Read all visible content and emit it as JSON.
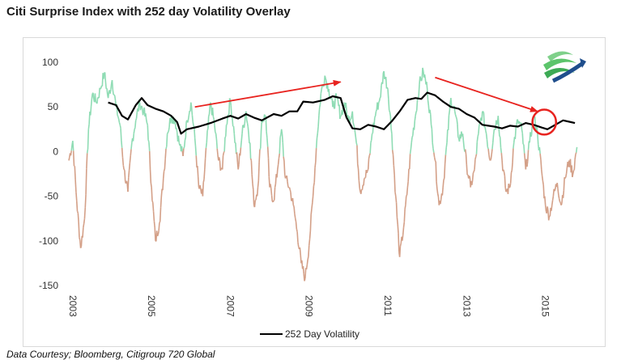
{
  "title": "Citi Surprise Index with 252 day Volatility Overlay",
  "source": "Data Courtesy; Bloomberg, Citigroup 720 Global",
  "colors": {
    "positive": "#8fdcb4",
    "negative": "#d4a088",
    "volatility": "#000000",
    "annotation": "#e8231f",
    "logo_green": "#5cc46b",
    "logo_blue": "#1f4e8c"
  },
  "chart_data": {
    "type": "line",
    "ylim": [
      -150,
      100
    ],
    "yticks": [
      100,
      50,
      0,
      -50,
      -100,
      -150
    ],
    "xlim": [
      2003,
      2015.95
    ],
    "xticks": [
      "2003",
      "2005",
      "2007",
      "2009",
      "2011",
      "2013",
      "2015"
    ],
    "legend": {
      "label": "252 Day Volatility",
      "position": "bottom"
    },
    "series": [
      {
        "name": "Citi Surprise Index",
        "style": "filled-line; green above 0, brown below 0",
        "points": [
          [
            2003.0,
            -10
          ],
          [
            2003.1,
            12
          ],
          [
            2003.2,
            -55
          ],
          [
            2003.3,
            -108
          ],
          [
            2003.4,
            -75
          ],
          [
            2003.5,
            25
          ],
          [
            2003.6,
            65
          ],
          [
            2003.7,
            55
          ],
          [
            2003.8,
            70
          ],
          [
            2003.9,
            88
          ],
          [
            2004.0,
            60
          ],
          [
            2004.1,
            80
          ],
          [
            2004.2,
            50
          ],
          [
            2004.3,
            30
          ],
          [
            2004.4,
            -20
          ],
          [
            2004.5,
            -45
          ],
          [
            2004.6,
            10
          ],
          [
            2004.7,
            35
          ],
          [
            2004.8,
            55
          ],
          [
            2004.9,
            45
          ],
          [
            2005.0,
            30
          ],
          [
            2005.1,
            -40
          ],
          [
            2005.2,
            -100
          ],
          [
            2005.3,
            -80
          ],
          [
            2005.4,
            -30
          ],
          [
            2005.5,
            20
          ],
          [
            2005.6,
            40
          ],
          [
            2005.7,
            35
          ],
          [
            2005.8,
            10
          ],
          [
            2005.9,
            -5
          ],
          [
            2006.0,
            35
          ],
          [
            2006.1,
            55
          ],
          [
            2006.2,
            15
          ],
          [
            2006.3,
            -40
          ],
          [
            2006.4,
            -50
          ],
          [
            2006.5,
            10
          ],
          [
            2006.6,
            55
          ],
          [
            2006.7,
            30
          ],
          [
            2006.8,
            -10
          ],
          [
            2006.9,
            -20
          ],
          [
            2007.0,
            30
          ],
          [
            2007.1,
            58
          ],
          [
            2007.2,
            20
          ],
          [
            2007.3,
            -20
          ],
          [
            2007.4,
            20
          ],
          [
            2007.5,
            45
          ],
          [
            2007.6,
            10
          ],
          [
            2007.7,
            -60
          ],
          [
            2007.8,
            -40
          ],
          [
            2007.9,
            35
          ],
          [
            2008.0,
            40
          ],
          [
            2008.1,
            -40
          ],
          [
            2008.2,
            -55
          ],
          [
            2008.3,
            -20
          ],
          [
            2008.4,
            25
          ],
          [
            2008.5,
            -30
          ],
          [
            2008.6,
            -40
          ],
          [
            2008.7,
            -60
          ],
          [
            2008.8,
            -90
          ],
          [
            2008.9,
            -125
          ],
          [
            2009.0,
            -142
          ],
          [
            2009.1,
            -105
          ],
          [
            2009.2,
            -50
          ],
          [
            2009.3,
            15
          ],
          [
            2009.4,
            65
          ],
          [
            2009.5,
            85
          ],
          [
            2009.6,
            70
          ],
          [
            2009.7,
            50
          ],
          [
            2009.8,
            60
          ],
          [
            2009.9,
            40
          ],
          [
            2010.0,
            55
          ],
          [
            2010.1,
            35
          ],
          [
            2010.2,
            45
          ],
          [
            2010.3,
            10
          ],
          [
            2010.4,
            -45
          ],
          [
            2010.5,
            -30
          ],
          [
            2010.6,
            -20
          ],
          [
            2010.7,
            20
          ],
          [
            2010.8,
            45
          ],
          [
            2010.9,
            60
          ],
          [
            2011.0,
            90
          ],
          [
            2011.1,
            70
          ],
          [
            2011.2,
            20
          ],
          [
            2011.3,
            -50
          ],
          [
            2011.4,
            -118
          ],
          [
            2011.5,
            -85
          ],
          [
            2011.6,
            -40
          ],
          [
            2011.7,
            10
          ],
          [
            2011.8,
            40
          ],
          [
            2011.9,
            75
          ],
          [
            2012.0,
            90
          ],
          [
            2012.1,
            70
          ],
          [
            2012.2,
            30
          ],
          [
            2012.3,
            -10
          ],
          [
            2012.4,
            -60
          ],
          [
            2012.5,
            -40
          ],
          [
            2012.6,
            10
          ],
          [
            2012.7,
            60
          ],
          [
            2012.8,
            45
          ],
          [
            2012.9,
            15
          ],
          [
            2013.0,
            20
          ],
          [
            2013.1,
            -15
          ],
          [
            2013.2,
            -40
          ],
          [
            2013.3,
            -20
          ],
          [
            2013.4,
            20
          ],
          [
            2013.5,
            45
          ],
          [
            2013.6,
            20
          ],
          [
            2013.7,
            -10
          ],
          [
            2013.8,
            25
          ],
          [
            2013.9,
            40
          ],
          [
            2014.0,
            -10
          ],
          [
            2014.1,
            -45
          ],
          [
            2014.2,
            -40
          ],
          [
            2014.3,
            10
          ],
          [
            2014.4,
            35
          ],
          [
            2014.5,
            25
          ],
          [
            2014.6,
            -20
          ],
          [
            2014.7,
            10
          ],
          [
            2014.8,
            40
          ],
          [
            2014.9,
            20
          ],
          [
            2015.0,
            -20
          ],
          [
            2015.1,
            -60
          ],
          [
            2015.2,
            -72
          ],
          [
            2015.3,
            -50
          ],
          [
            2015.4,
            -35
          ],
          [
            2015.5,
            -60
          ],
          [
            2015.6,
            -30
          ],
          [
            2015.7,
            -10
          ],
          [
            2015.8,
            -25
          ],
          [
            2015.9,
            5
          ]
        ]
      },
      {
        "name": "252 Day Volatility",
        "style": "black line",
        "points": [
          [
            2004.0,
            55
          ],
          [
            2004.2,
            52
          ],
          [
            2004.35,
            40
          ],
          [
            2004.5,
            36
          ],
          [
            2004.7,
            52
          ],
          [
            2004.85,
            60
          ],
          [
            2005.0,
            52
          ],
          [
            2005.2,
            48
          ],
          [
            2005.4,
            45
          ],
          [
            2005.6,
            40
          ],
          [
            2005.75,
            33
          ],
          [
            2005.85,
            20
          ],
          [
            2006.0,
            25
          ],
          [
            2006.3,
            28
          ],
          [
            2006.6,
            32
          ],
          [
            2006.9,
            37
          ],
          [
            2007.1,
            40
          ],
          [
            2007.3,
            37
          ],
          [
            2007.5,
            42
          ],
          [
            2007.7,
            38
          ],
          [
            2007.9,
            35
          ],
          [
            2008.2,
            42
          ],
          [
            2008.4,
            40
          ],
          [
            2008.6,
            45
          ],
          [
            2008.8,
            45
          ],
          [
            2008.95,
            56
          ],
          [
            2009.2,
            55
          ],
          [
            2009.5,
            58
          ],
          [
            2009.7,
            62
          ],
          [
            2009.9,
            60
          ],
          [
            2010.05,
            38
          ],
          [
            2010.2,
            26
          ],
          [
            2010.4,
            25
          ],
          [
            2010.6,
            30
          ],
          [
            2010.8,
            28
          ],
          [
            2011.0,
            25
          ],
          [
            2011.2,
            34
          ],
          [
            2011.4,
            45
          ],
          [
            2011.6,
            58
          ],
          [
            2011.8,
            60
          ],
          [
            2011.95,
            59
          ],
          [
            2012.1,
            66
          ],
          [
            2012.3,
            63
          ],
          [
            2012.5,
            56
          ],
          [
            2012.7,
            50
          ],
          [
            2012.9,
            48
          ],
          [
            2013.1,
            42
          ],
          [
            2013.3,
            38
          ],
          [
            2013.5,
            30
          ],
          [
            2013.8,
            28
          ],
          [
            2014.0,
            26
          ],
          [
            2014.2,
            29
          ],
          [
            2014.4,
            28
          ],
          [
            2014.6,
            32
          ],
          [
            2014.8,
            30
          ],
          [
            2015.0,
            27
          ],
          [
            2015.15,
            25
          ],
          [
            2015.35,
            30
          ],
          [
            2015.55,
            35
          ],
          [
            2015.75,
            33
          ],
          [
            2015.85,
            32
          ]
        ]
      }
    ],
    "annotations": [
      {
        "type": "arrow",
        "from": [
          2006.2,
          50
        ],
        "to": [
          2009.9,
          78
        ]
      },
      {
        "type": "arrow",
        "from": [
          2012.3,
          83
        ],
        "to": [
          2014.9,
          45
        ]
      },
      {
        "type": "circle",
        "center": [
          2015.07,
          33
        ],
        "radius_x": 0.3,
        "radius_y": 14
      }
    ]
  }
}
